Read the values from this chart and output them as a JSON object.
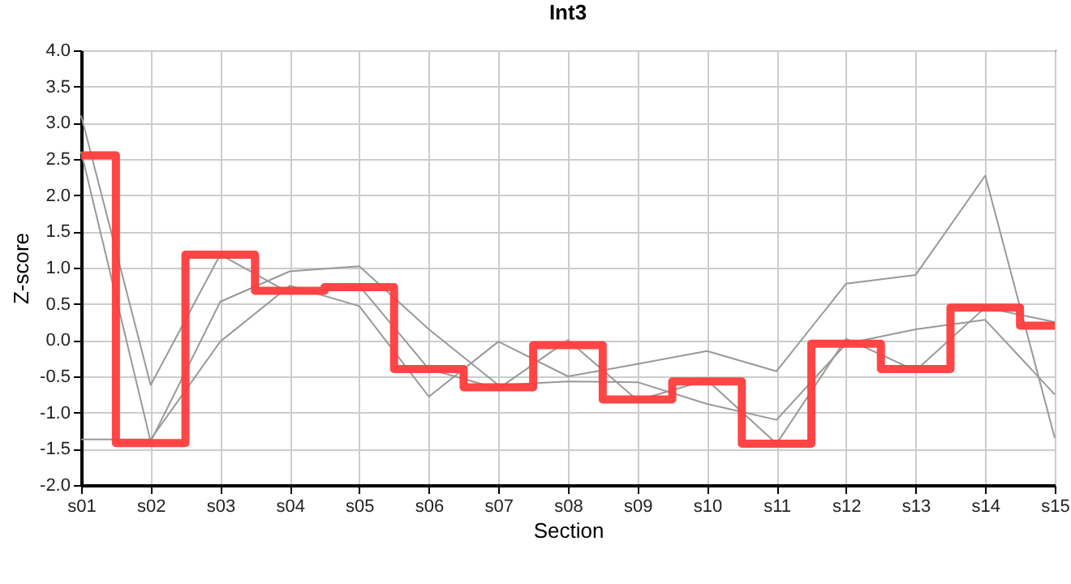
{
  "chart_data": {
    "type": "line",
    "title": "Int3",
    "xlabel": "Section",
    "ylabel": "Z-score",
    "categories": [
      "s01",
      "s02",
      "s03",
      "s04",
      "s05",
      "s06",
      "s07",
      "s08",
      "s09",
      "s10",
      "s11",
      "s12",
      "s13",
      "s14",
      "s15"
    ],
    "series": [
      {
        "type": "line",
        "color": "#999999",
        "values": [
          3.1,
          -0.62,
          1.18,
          0.65,
          0.75,
          -0.4,
          -0.67,
          0.0,
          -0.83,
          -0.55,
          -1.43,
          0.02,
          -0.42,
          0.45,
          0.25
        ]
      },
      {
        "type": "line",
        "color": "#999999",
        "values": [
          2.6,
          -1.4,
          0.53,
          0.95,
          1.02,
          0.15,
          -0.62,
          -0.57,
          -0.58,
          -0.88,
          -1.1,
          -0.05,
          0.15,
          0.28,
          -0.75
        ]
      },
      {
        "type": "line",
        "color": "#999999",
        "values": [
          -1.37,
          -1.37,
          -0.02,
          0.75,
          0.47,
          -0.78,
          -0.02,
          -0.5,
          -0.33,
          -0.15,
          -0.43,
          0.78,
          0.9,
          2.27,
          -1.35
        ]
      },
      {
        "type": "step",
        "color": "#ff3b3b",
        "values": [
          2.55,
          -1.42,
          1.18,
          0.68,
          0.73,
          -0.4,
          -0.65,
          -0.07,
          -0.82,
          -0.57,
          -1.43,
          -0.05,
          -0.4,
          0.45,
          0.2
        ]
      }
    ],
    "ylim": [
      -2,
      4
    ],
    "yticks": [
      {
        "value": -2,
        "label": "-2.0"
      },
      {
        "value": -1.5,
        "label": "-1.5"
      },
      {
        "value": -1,
        "label": "-1.0"
      },
      {
        "value": -0.5,
        "label": "-0.5"
      },
      {
        "value": 0,
        "label": "0.0"
      },
      {
        "value": 0.5,
        "label": "0.5"
      },
      {
        "value": 1,
        "label": "1.0"
      },
      {
        "value": 1.5,
        "label": "1.5"
      },
      {
        "value": 2,
        "label": "2.0"
      },
      {
        "value": 2.5,
        "label": "2.5"
      },
      {
        "value": 3,
        "label": "3.0"
      },
      {
        "value": 3.5,
        "label": "3.5"
      },
      {
        "value": 4,
        "label": "4.0"
      }
    ],
    "grid": true,
    "legend": false,
    "marker": "none",
    "line_style": "solid"
  }
}
